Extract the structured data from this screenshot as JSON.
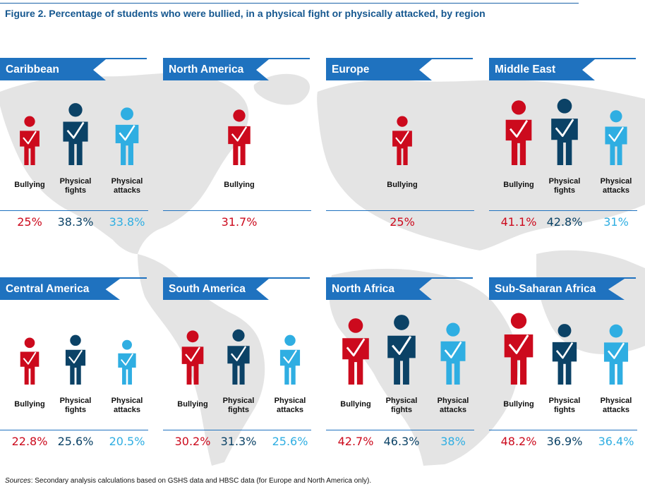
{
  "title": "Figure 2. Percentage of students who were bullied, in a physical fight or physically attacked, by region",
  "footnote": {
    "lead": "Sources",
    "text": ": Secondary analysis calculations based on GSHS data and HBSC data (for Europe and North America only)."
  },
  "colors": {
    "bullying": "#cc0a1d",
    "physical_fights": "#0b4266",
    "physical_attacks": "#2faee2",
    "banner": "#1f72bf",
    "map": "#e3e3e3"
  },
  "chart_data": {
    "type": "pictograph",
    "unit": "%",
    "indicators": [
      {
        "key": "bullying",
        "label": "Bullying"
      },
      {
        "key": "physical_fights",
        "label": "Physical fights"
      },
      {
        "key": "physical_attacks",
        "label": "Physical attacks"
      }
    ],
    "regions": [
      {
        "name": "Caribbean",
        "values": {
          "bullying": 25,
          "physical_fights": 38.3,
          "physical_attacks": 33.8
        },
        "display": {
          "bullying": "25%",
          "physical_fights": "38.3%",
          "physical_attacks": "33.8%"
        }
      },
      {
        "name": "North America",
        "values": {
          "bullying": 31.7
        },
        "display": {
          "bullying": "31.7%"
        }
      },
      {
        "name": "Europe",
        "values": {
          "bullying": 25
        },
        "display": {
          "bullying": "25%"
        }
      },
      {
        "name": "Middle East",
        "values": {
          "bullying": 41.1,
          "physical_fights": 42.8,
          "physical_attacks": 31
        },
        "display": {
          "bullying": "41.1%",
          "physical_fights": "42.8%",
          "physical_attacks": "31%"
        }
      },
      {
        "name": "Central America",
        "values": {
          "bullying": 22.8,
          "physical_fights": 25.6,
          "physical_attacks": 20.5
        },
        "display": {
          "bullying": "22.8%",
          "physical_fights": "25.6%",
          "physical_attacks": "20.5%"
        }
      },
      {
        "name": "South America",
        "values": {
          "bullying": 30.2,
          "physical_fights": 31.3,
          "physical_attacks": 25.6
        },
        "display": {
          "bullying": "30.2%",
          "physical_fights": "31.3%",
          "physical_attacks": "25.6%"
        }
      },
      {
        "name": "North Africa",
        "values": {
          "bullying": 42.7,
          "physical_fights": 46.3,
          "physical_attacks": 38
        },
        "display": {
          "bullying": "42.7%",
          "physical_fights": "46.3%",
          "physical_attacks": "38%"
        }
      },
      {
        "name": "Sub-Saharan Africa",
        "values": {
          "bullying": 48.2,
          "physical_fights": 36.9,
          "physical_attacks": 36.4
        },
        "display": {
          "bullying": "48.2%",
          "physical_fights": "36.9%",
          "physical_attacks": "36.4%"
        }
      }
    ]
  }
}
